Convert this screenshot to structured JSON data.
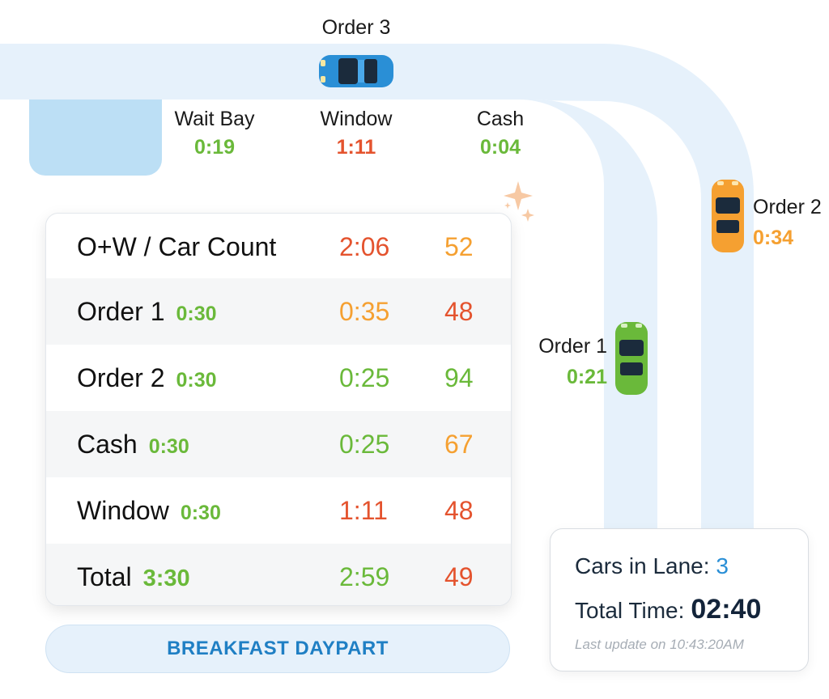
{
  "colors": {
    "good": "#6ab93a",
    "bad": "#e4532e",
    "warn": "#f5a031",
    "lane": "#e6f1fb",
    "wait_bay": "#bcdff5",
    "accent": "#2a8fd6"
  },
  "lane": {
    "order3": {
      "label": "Order 3",
      "car_color": "blue"
    },
    "wait_bay": {
      "label": "Wait Bay",
      "time": "0:19",
      "status": "good"
    },
    "window": {
      "label": "Window",
      "time": "1:11",
      "status": "bad"
    },
    "cash": {
      "label": "Cash",
      "time": "0:04",
      "status": "good"
    },
    "order2": {
      "label": "Order 2",
      "time": "0:34",
      "status": "warn",
      "car_color": "orange"
    },
    "order1": {
      "label": "Order 1",
      "time": "0:21",
      "status": "good",
      "car_color": "green"
    }
  },
  "table": {
    "header": {
      "label": "O+W / Car Count",
      "time": "2:06",
      "count": "52"
    },
    "rows": [
      {
        "label": "Order 1",
        "goal": "0:30",
        "time": "0:35",
        "count": "48"
      },
      {
        "label": "Order 2",
        "goal": "0:30",
        "time": "0:25",
        "count": "94"
      },
      {
        "label": "Cash",
        "goal": "0:30",
        "time": "0:25",
        "count": "67"
      },
      {
        "label": "Window",
        "goal": "0:30",
        "time": "1:11",
        "count": "48"
      },
      {
        "label": "Total",
        "goal": "3:30",
        "time": "2:59",
        "count": "49"
      }
    ]
  },
  "daypart": {
    "label": "BREAKFAST DAYPART"
  },
  "summary": {
    "cars_label": "Cars in Lane:",
    "cars_value": "3",
    "total_label": "Total Time:",
    "total_value": "02:40",
    "last_update": "Last update on 10:43:20AM"
  }
}
